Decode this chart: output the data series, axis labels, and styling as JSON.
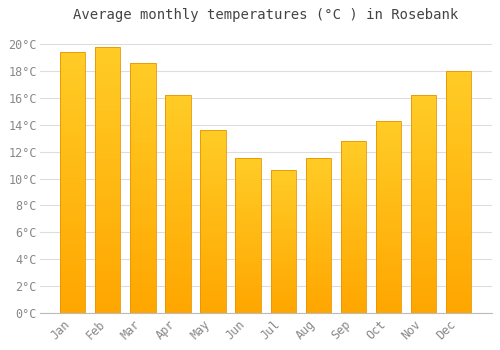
{
  "title": "Average monthly temperatures (°C ) in Rosebank",
  "months": [
    "Jan",
    "Feb",
    "Mar",
    "Apr",
    "May",
    "Jun",
    "Jul",
    "Aug",
    "Sep",
    "Oct",
    "Nov",
    "Dec"
  ],
  "values": [
    19.4,
    19.8,
    18.6,
    16.2,
    13.6,
    11.5,
    10.6,
    11.5,
    12.8,
    14.3,
    16.2,
    18.0
  ],
  "bar_color_top": "#FFC125",
  "bar_color_bottom": "#FFA500",
  "bar_edge_color": "#E89400",
  "background_color": "#FFFFFF",
  "plot_bg_color": "#FFFFFF",
  "grid_color": "#DDDDDD",
  "text_color": "#888888",
  "title_color": "#444444",
  "ylim": [
    0,
    21
  ],
  "yticks": [
    0,
    2,
    4,
    6,
    8,
    10,
    12,
    14,
    16,
    18,
    20
  ],
  "title_fontsize": 10,
  "tick_fontsize": 8.5,
  "figsize": [
    5.0,
    3.5
  ],
  "dpi": 100
}
